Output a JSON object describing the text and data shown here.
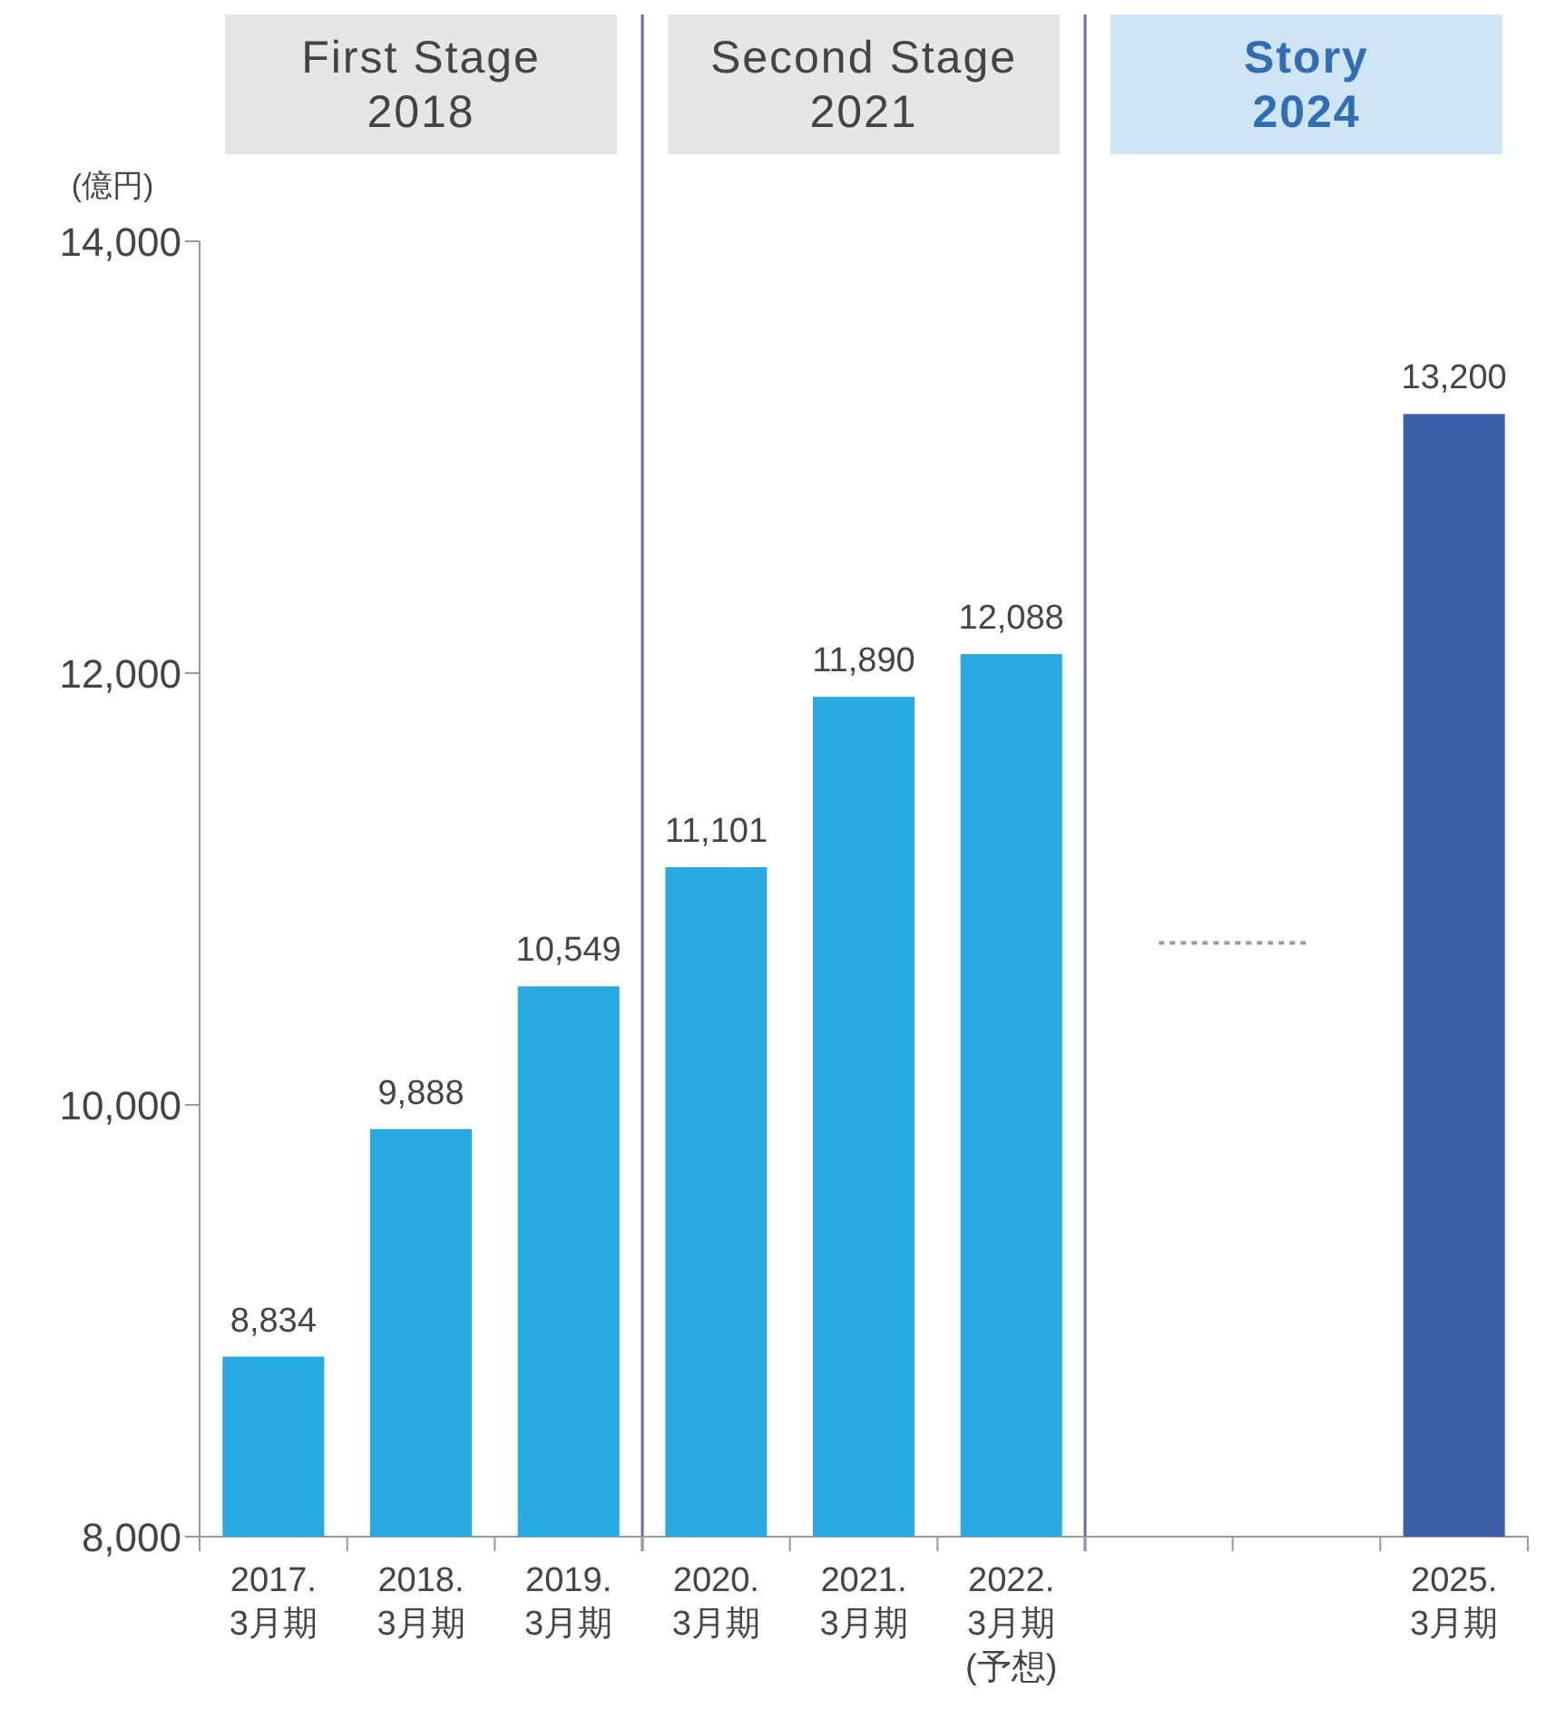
{
  "chart_data": {
    "type": "bar",
    "ylabel": "(億円)",
    "categories": [
      "2017.\n3月期",
      "2018.\n3月期",
      "2019.\n3月期",
      "2020.\n3月期",
      "2021.\n3月期",
      "2022.\n3月期\n(予想)",
      null,
      null,
      "2025.\n3月期"
    ],
    "series": [
      {
        "values": [
          8834,
          9888,
          10549,
          11101,
          11890,
          12088,
          null,
          null,
          13200
        ],
        "colors": [
          "#29abe2",
          "#29abe2",
          "#29abe2",
          "#29abe2",
          "#29abe2",
          "#29abe2",
          null,
          null,
          "#3d5fa8"
        ],
        "value_labels": [
          "8,834",
          "9,888",
          "10,549",
          "11,101",
          "11,890",
          "12,088",
          null,
          null,
          "13,200"
        ]
      },
      {
        "type": "line",
        "values": [
          null,
          null,
          null,
          null,
          null,
          null,
          10750,
          10750,
          null
        ],
        "color": "#999999",
        "line_style": "dotted",
        "marker": "none"
      }
    ],
    "ylim": [
      8000,
      14000
    ],
    "yticks": [
      {
        "value": 8000,
        "label": "8,000"
      },
      {
        "value": 10000,
        "label": "10,000"
      },
      {
        "value": 12000,
        "label": "12,000"
      },
      {
        "value": 14000,
        "label": "14,000"
      }
    ],
    "grid": false,
    "annotations": [
      "First Stage\n2018",
      "Second Stage\n2021",
      "Story\n2024"
    ]
  }
}
